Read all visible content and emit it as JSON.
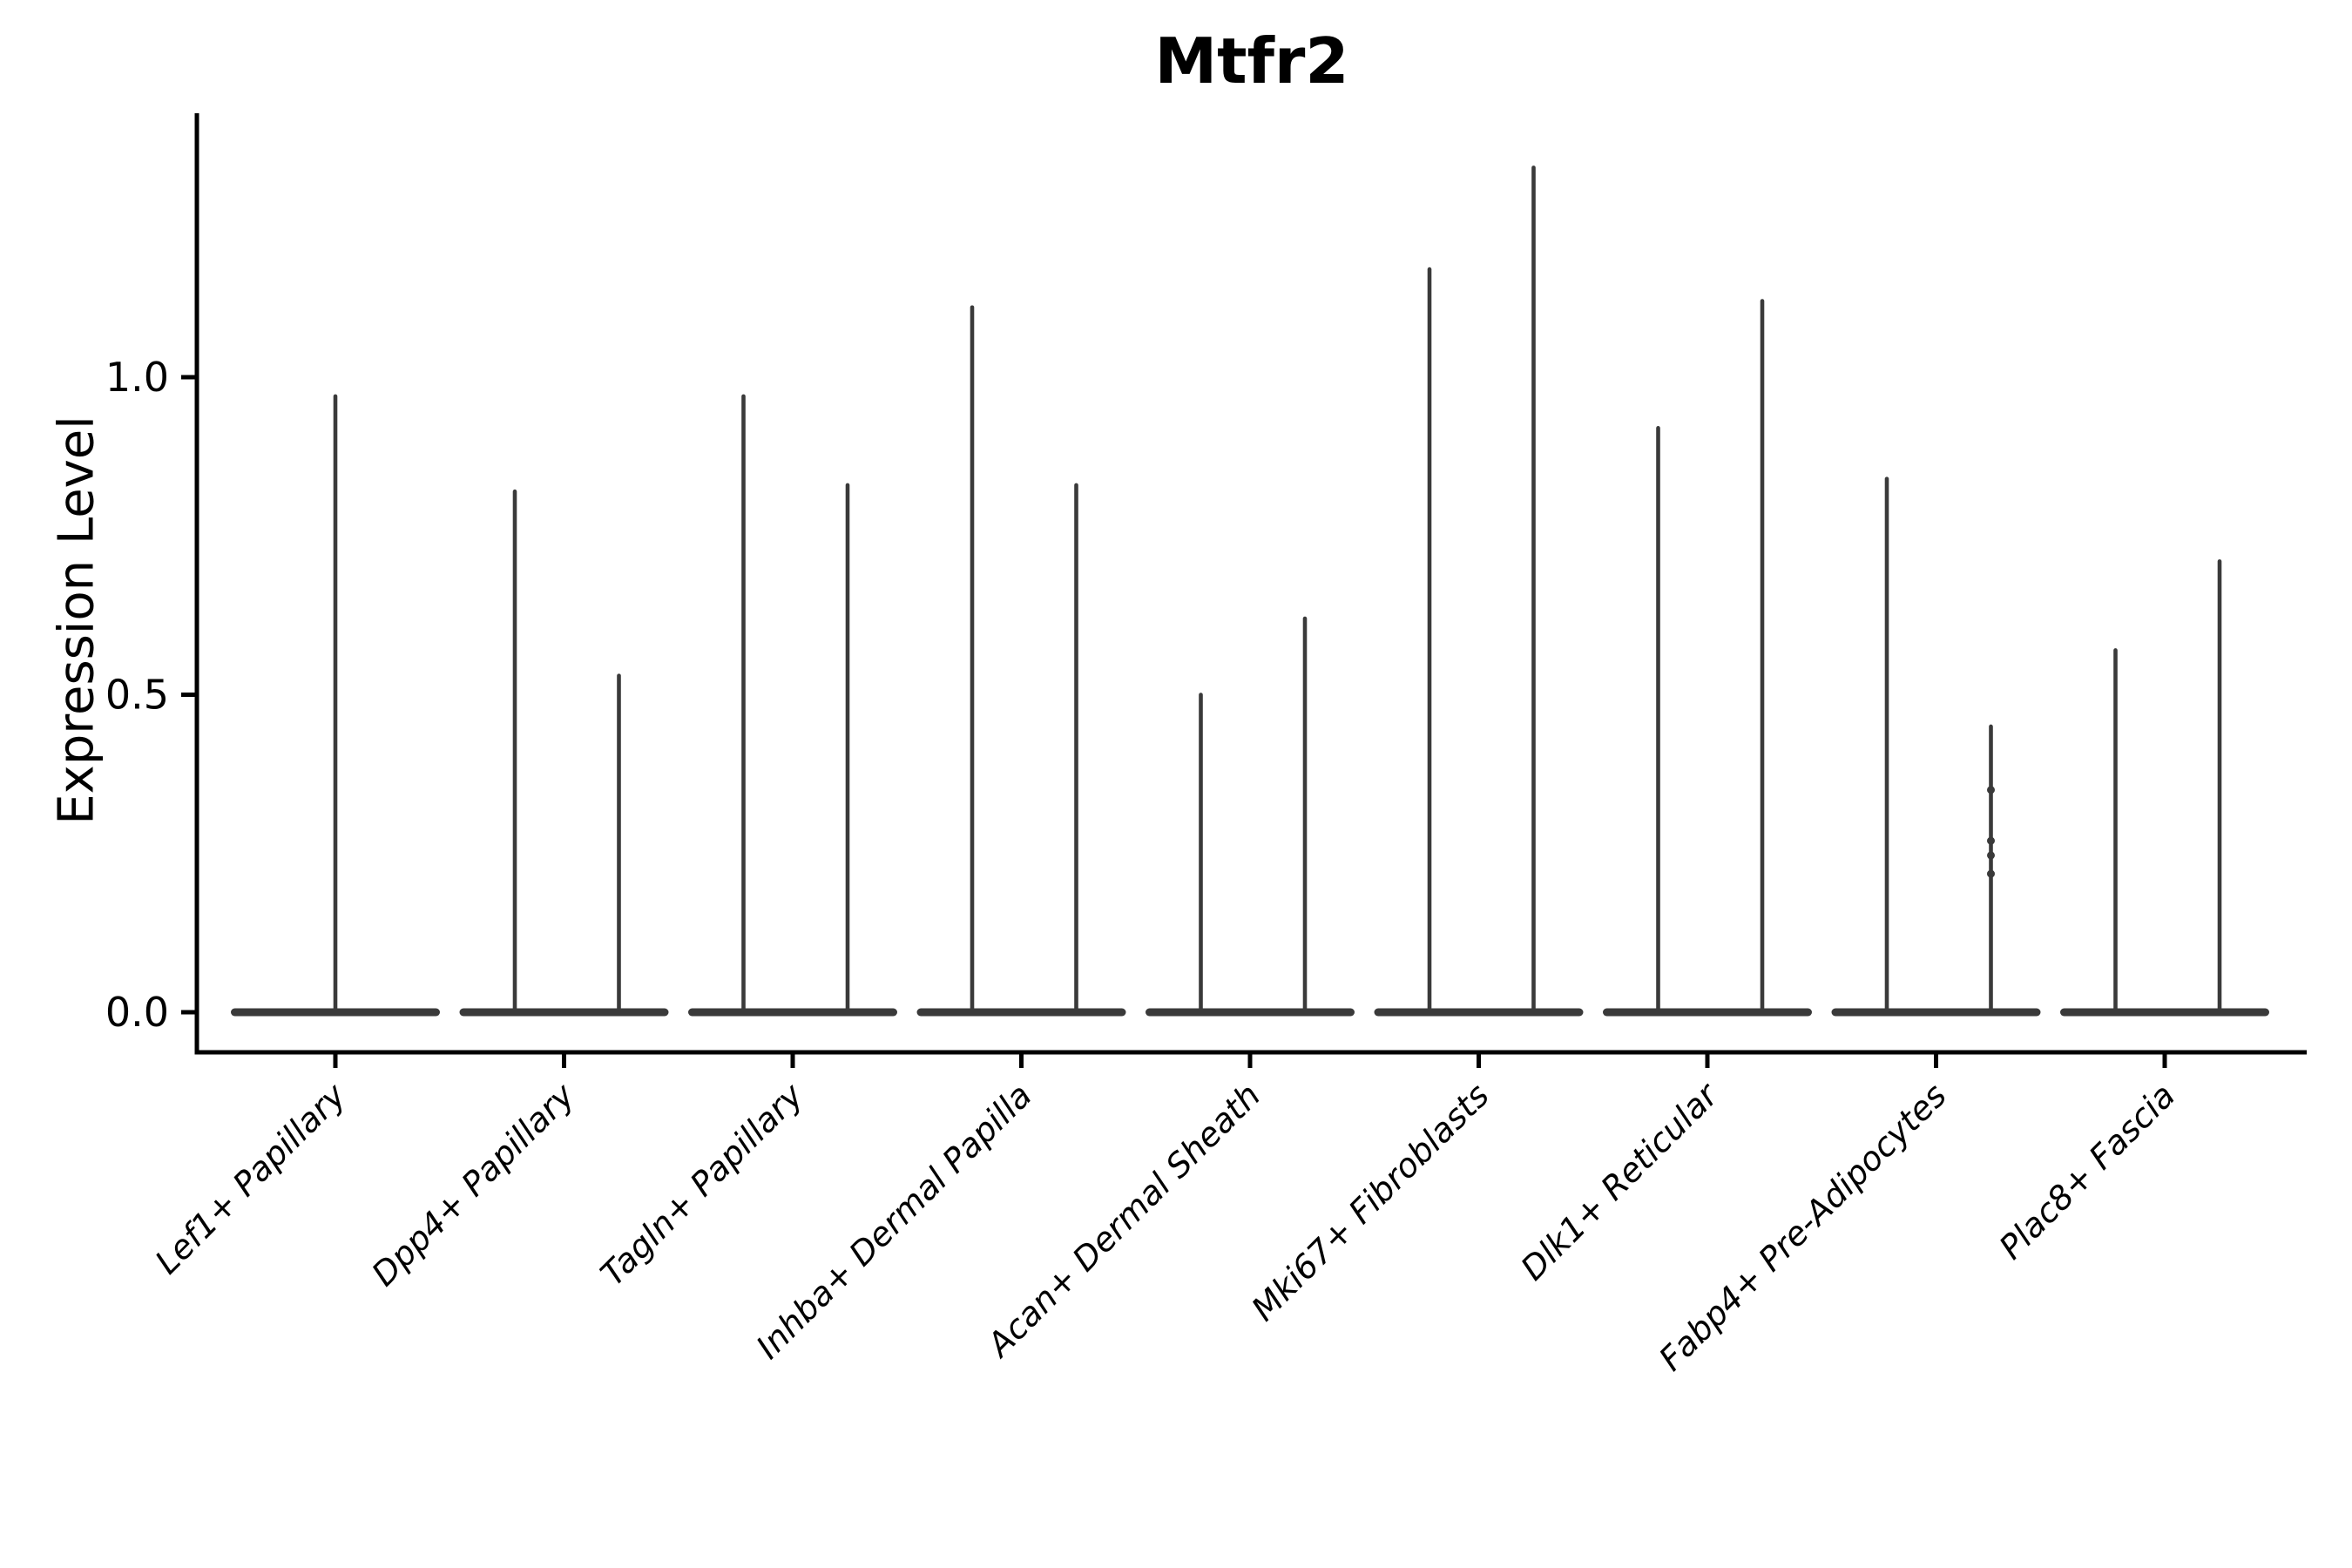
{
  "title": "Mtfr2",
  "y_axis": {
    "label": "Expression Level",
    "tick_labels": [
      "0.0",
      "0.5",
      "1.0"
    ],
    "tick_values": [
      0.0,
      0.5,
      1.0
    ]
  },
  "x_axis": {
    "label": "",
    "tick_labels": [
      "Lef1+ Papillary",
      "Dpp4+ Papillary",
      "Tagln+ Papillary",
      "Inhba+ Dermal Papilla",
      "Acan+ Dermal Sheath",
      "Mki67+ Fibroblasts",
      "Dlk1+ Reticular",
      "Fabp4+ Pre-Adipocytes",
      "Plac8+ Fascia"
    ]
  },
  "chart_data": {
    "type": "violin",
    "title": "Mtfr2",
    "xlabel": "",
    "ylabel": "Expression Level",
    "ylim": [
      -0.063,
      1.415
    ],
    "yticks": [
      0.0,
      0.5,
      1.0
    ],
    "grid": false,
    "legend": false,
    "description": "Zero-inflated expression violins: each violin is a flat mass at 0 with one thin vertical density spike per group reaching the group's maximum expression value.",
    "categories": [
      "Lef1+ Papillary",
      "Dpp4+ Papillary",
      "Tagln+ Papillary",
      "Inhba+ Dermal Papilla",
      "Acan+ Dermal Sheath",
      "Mki67+ Fibroblasts",
      "Dlk1+ Reticular",
      "Fabp4+ Pre-Adipocytes",
      "Plac8+ Fascia"
    ],
    "violins": [
      {
        "category": "Lef1+ Papillary",
        "baseline_value": 0.0,
        "groups": [
          {
            "side": "center",
            "max_expression": 0.97
          }
        ]
      },
      {
        "category": "Dpp4+ Papillary",
        "baseline_value": 0.0,
        "groups": [
          {
            "side": "left",
            "max_expression": 0.82
          },
          {
            "side": "right",
            "max_expression": 0.53
          }
        ]
      },
      {
        "category": "Tagln+ Papillary",
        "baseline_value": 0.0,
        "groups": [
          {
            "side": "left",
            "max_expression": 0.97
          },
          {
            "side": "right",
            "max_expression": 0.83
          }
        ]
      },
      {
        "category": "Inhba+ Dermal Papilla",
        "baseline_value": 0.0,
        "groups": [
          {
            "side": "left",
            "max_expression": 1.11
          },
          {
            "side": "right",
            "max_expression": 0.83
          }
        ]
      },
      {
        "category": "Acan+ Dermal Sheath",
        "baseline_value": 0.0,
        "groups": [
          {
            "side": "left",
            "max_expression": 0.5
          },
          {
            "side": "right",
            "max_expression": 0.62
          }
        ]
      },
      {
        "category": "Mki67+ Fibroblasts",
        "baseline_value": 0.0,
        "groups": [
          {
            "side": "left",
            "max_expression": 1.17
          },
          {
            "side": "right",
            "max_expression": 1.33
          }
        ]
      },
      {
        "category": "Dlk1+ Reticular",
        "baseline_value": 0.0,
        "groups": [
          {
            "side": "left",
            "max_expression": 0.92
          },
          {
            "side": "right",
            "max_expression": 1.12
          }
        ]
      },
      {
        "category": "Fabp4+ Pre-Adipocytes",
        "baseline_value": 0.0,
        "groups": [
          {
            "side": "left",
            "max_expression": 0.84
          },
          {
            "side": "right",
            "max_expression": 0.45,
            "knot_values": [
              0.35,
              0.27,
              0.247,
              0.218
            ]
          }
        ]
      },
      {
        "category": "Plac8+ Fascia",
        "baseline_value": 0.0,
        "groups": [
          {
            "side": "left",
            "max_expression": 0.57
          },
          {
            "side": "right",
            "max_expression": 0.71
          }
        ]
      }
    ]
  },
  "style": {
    "violin_color": "#3a3a3a",
    "axis_color": "#000000",
    "text_color": "#000000",
    "background": "#ffffff"
  }
}
